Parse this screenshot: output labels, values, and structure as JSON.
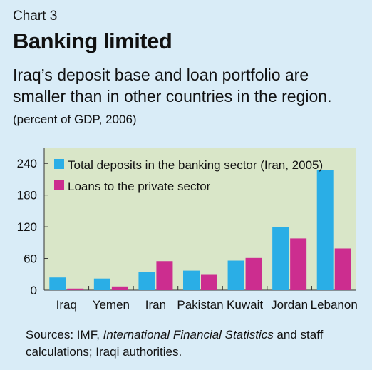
{
  "header": {
    "chart_number": "Chart 3",
    "title": "Banking limited",
    "subtitle": "Iraq’s deposit base and loan portfolio are smaller than in other countries in the region.",
    "units": "(percent of GDP, 2006)"
  },
  "sources": {
    "prefix": "Sources: IMF, ",
    "italic": "International Financial Statistics",
    "suffix": " and staff calculations; Iraqi authorities."
  },
  "colors": {
    "page_background": "#d9ecf7",
    "plot_background": "#d9e6c8",
    "deposits": "#2aaee6",
    "loans": "#cc2d8f"
  },
  "chart_data": {
    "type": "bar",
    "categories": [
      "Iraq",
      "Yemen",
      "Iran",
      "Pakistan",
      "Kuwait",
      "Jordan",
      "Lebanon"
    ],
    "series": [
      {
        "name": "Total deposits in the banking sector (Iran, 2005)",
        "values": [
          24,
          22,
          35,
          37,
          56,
          119,
          228
        ]
      },
      {
        "name": "Loans to the private sector",
        "values": [
          3,
          7,
          55,
          29,
          61,
          98,
          79
        ]
      }
    ],
    "yticks": [
      0,
      60,
      120,
      180,
      240
    ],
    "ylim": [
      0,
      270
    ],
    "grid": false,
    "legend_position": "top-left"
  }
}
